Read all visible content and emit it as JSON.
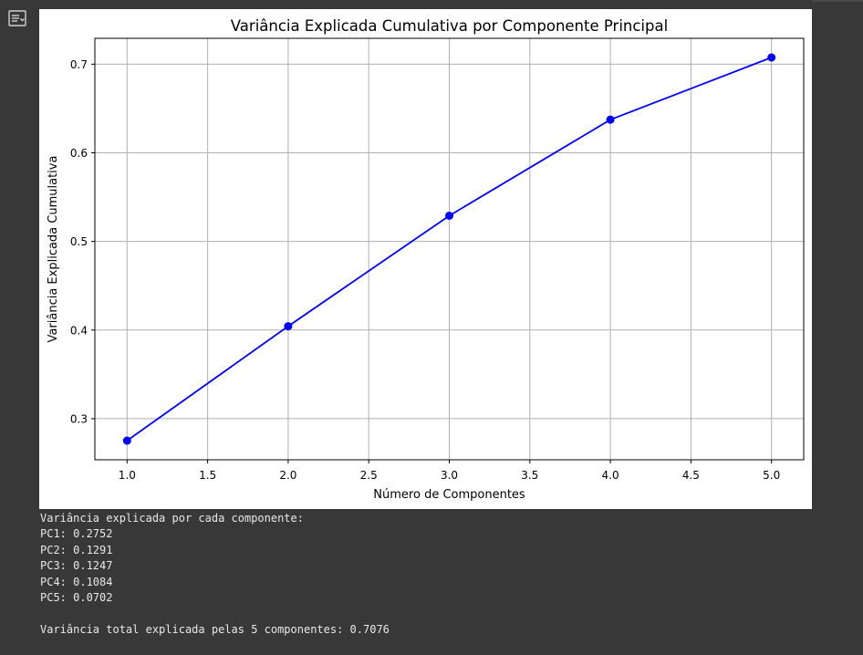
{
  "toolbar": {
    "output_toggle_icon": "output-options-icon"
  },
  "chart_data": {
    "type": "line",
    "title": "Variância Explicada Cumulativa por Componente Principal",
    "xlabel": "Número de Componentes",
    "ylabel": "Variância Explicada Cumulativa",
    "x": [
      1,
      2,
      3,
      4,
      5
    ],
    "series": [
      {
        "values": [
          0.2752,
          0.4043,
          0.529,
          0.6374,
          0.7076
        ],
        "color": "#0000ff",
        "marker": "o"
      }
    ],
    "xlim": [
      0.8,
      5.2
    ],
    "ylim": [
      0.2536,
      0.7292
    ],
    "xticks": [
      "1.0",
      "1.5",
      "2.0",
      "2.5",
      "3.0",
      "3.5",
      "4.0",
      "4.5",
      "5.0"
    ],
    "yticks": [
      "0.3",
      "0.4",
      "0.5",
      "0.6",
      "0.7"
    ],
    "grid": true
  },
  "console": {
    "lines": [
      "Variância explicada por cada componente:",
      "PC1: 0.2752",
      "PC2: 0.1291",
      "PC3: 0.1247",
      "PC4: 0.1084",
      "PC5: 0.0702",
      "",
      "Variância total explicada pelas 5 componentes: 0.7076"
    ]
  }
}
